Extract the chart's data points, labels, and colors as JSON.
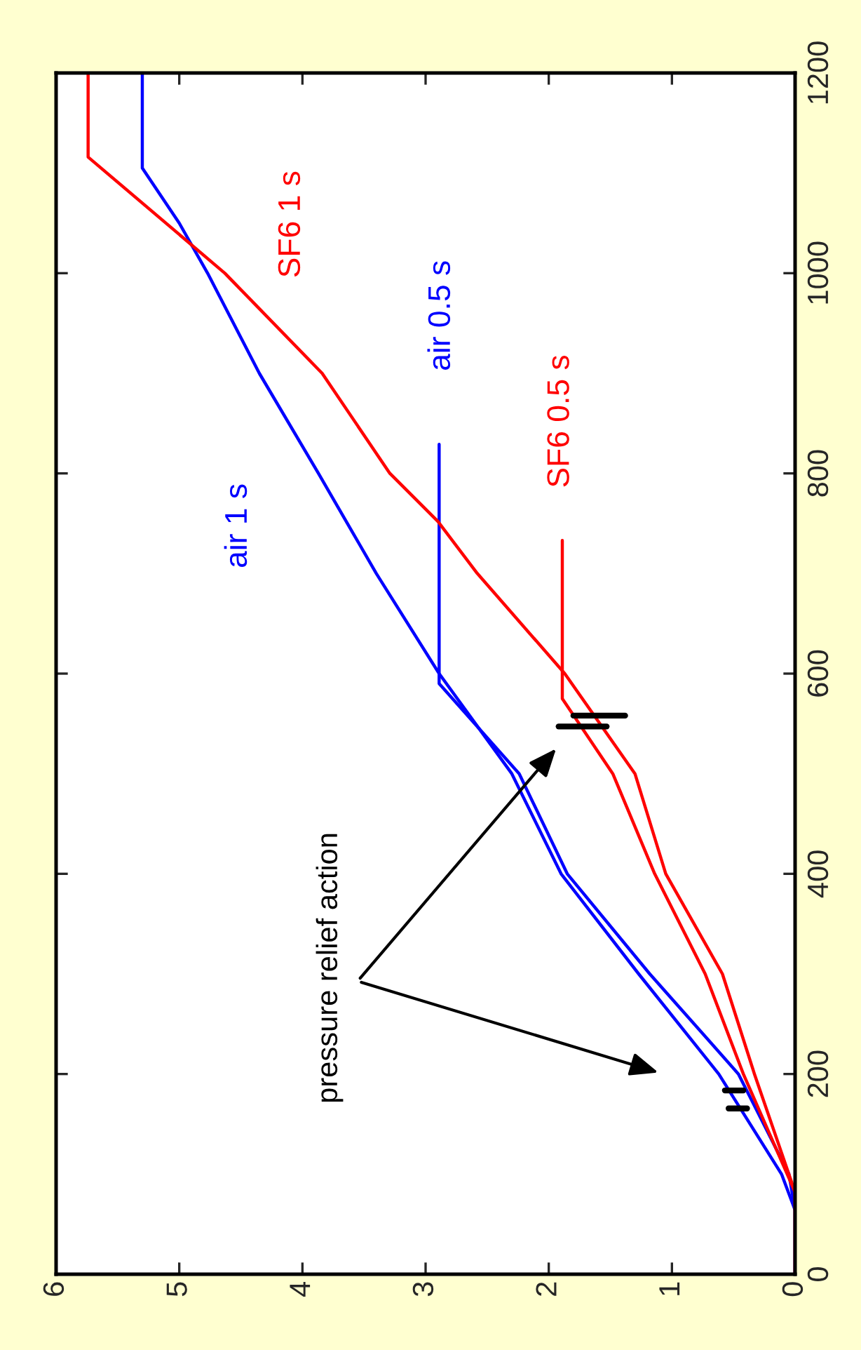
{
  "chart_data": {
    "type": "line",
    "xlim": [
      6,
      0
    ],
    "xticks": [
      0,
      1,
      2,
      3,
      4,
      5,
      6
    ],
    "ylim": [
      0,
      1200
    ],
    "yticks": [
      0,
      200,
      400,
      600,
      800,
      1000,
      1200
    ],
    "grid": false,
    "legend": false,
    "line_style": "solid",
    "marker": "none",
    "series": [
      {
        "name": "air 1 s",
        "color": "#0000ff",
        "values": [
          0,
          64,
          100,
          200,
          300,
          400,
          500,
          600,
          700,
          800,
          900,
          1000,
          1050,
          1105,
          1200
        ],
        "x": [
          0,
          0,
          0.11,
          0.62,
          1.27,
          1.9,
          2.3,
          2.89,
          3.4,
          3.87,
          4.35,
          4.77,
          5.0,
          5.3,
          5.3
        ]
      },
      {
        "name": "air 0.5 s",
        "color": "#0000ff",
        "values": [
          0,
          64,
          100,
          200,
          300,
          400,
          500,
          590,
          829
        ],
        "x": [
          0,
          0,
          0.05,
          0.46,
          1.18,
          1.85,
          2.24,
          2.89,
          2.89
        ]
      },
      {
        "name": "SF6 1 s",
        "color": "#ff0000",
        "values": [
          0,
          82,
          200,
          300,
          400,
          500,
          600,
          700,
          752,
          800,
          900,
          1000,
          1116,
          1200
        ],
        "x": [
          0,
          0,
          0.33,
          0.59,
          1.05,
          1.3,
          1.87,
          2.58,
          2.9,
          3.29,
          3.84,
          4.63,
          5.74,
          5.74
        ]
      },
      {
        "name": "SF6 0.5 s",
        "color": "#ff0000",
        "values": [
          0,
          82,
          200,
          300,
          400,
          500,
          575,
          733
        ],
        "x": [
          0,
          0,
          0.42,
          0.73,
          1.14,
          1.48,
          1.89,
          1.89
        ]
      }
    ],
    "annotations": [
      "pressure relief action"
    ]
  }
}
